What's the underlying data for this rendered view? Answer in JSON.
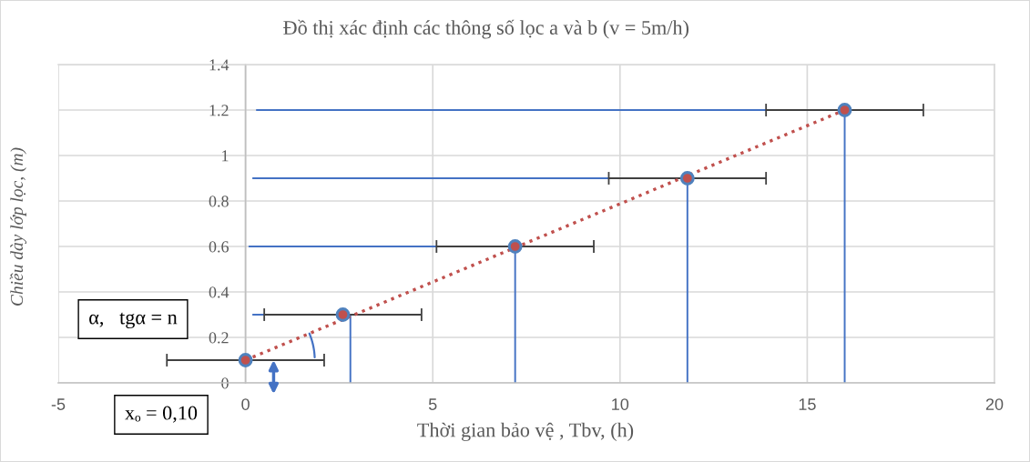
{
  "chart_data": {
    "type": "scatter",
    "title": "Đồ thị xác định các thông số lọc a và b (v = 5m/h)",
    "xlabel": "Thời gian bảo vệ , Tbv, (h)",
    "ylabel": "Chiều dày lớp lọc, (m)",
    "xlim": [
      -5,
      20
    ],
    "ylim": [
      0,
      1.4
    ],
    "xticks": [
      -5,
      0,
      5,
      10,
      15,
      20
    ],
    "yticks": [
      0,
      0.2,
      0.4,
      0.6,
      0.8,
      1,
      1.2,
      1.4
    ],
    "grid": true,
    "series": [
      {
        "type": "line",
        "color": "#c0504d",
        "line_style": "dotted",
        "x": [
          0,
          16.0
        ],
        "values": [
          0.1,
          1.2
        ]
      },
      {
        "type": "line",
        "color": "#4472c4",
        "x": [
          0.3,
          16.0,
          16.0
        ],
        "values": [
          1.2,
          1.2,
          0
        ]
      },
      {
        "type": "line",
        "color": "#4472c4",
        "x": [
          0.2,
          11.8,
          11.8
        ],
        "values": [
          0.9,
          0.9,
          0
        ]
      },
      {
        "type": "line",
        "color": "#4472c4",
        "x": [
          0.1,
          7.2,
          7.2
        ],
        "values": [
          0.6,
          0.6,
          0
        ]
      },
      {
        "type": "line",
        "color": "#4472c4",
        "x": [
          0.2,
          2.8,
          2.8
        ],
        "values": [
          0.3,
          0.3,
          0
        ]
      },
      {
        "color": "#c0504d",
        "marker": "circle",
        "x": [
          0,
          2.6,
          7.2,
          11.8,
          16.0
        ],
        "values": [
          0.1,
          0.3,
          0.6,
          0.9,
          1.2
        ],
        "xerrors": [
          2.1,
          2.1,
          2.1,
          2.1,
          2.1
        ]
      }
    ],
    "annotations": [
      "α,   tgα = n",
      "xₒ = 0,10"
    ]
  }
}
